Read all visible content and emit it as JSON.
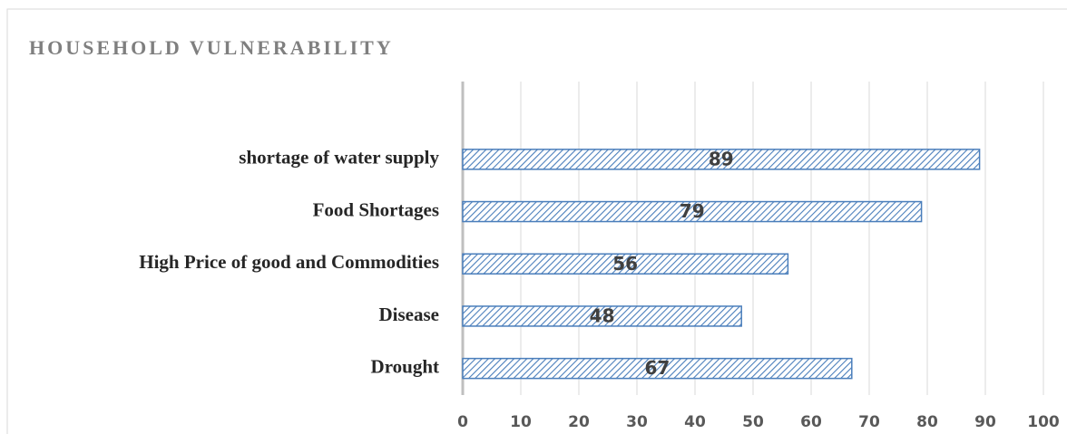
{
  "chart_data": {
    "type": "barh",
    "title": "HOUSEHOLD VULNERABILITY",
    "categories": [
      "shortage of water supply",
      "Food Shortages",
      "High Price of good and Commodities",
      "Disease",
      "Drought"
    ],
    "values": [
      89,
      79,
      56,
      48,
      67
    ],
    "color": "#4a7ebb",
    "xlim": [
      0,
      100
    ],
    "xticks": [
      0,
      10,
      20,
      30,
      40,
      50,
      60,
      70,
      80,
      90,
      100
    ],
    "grid": true
  }
}
